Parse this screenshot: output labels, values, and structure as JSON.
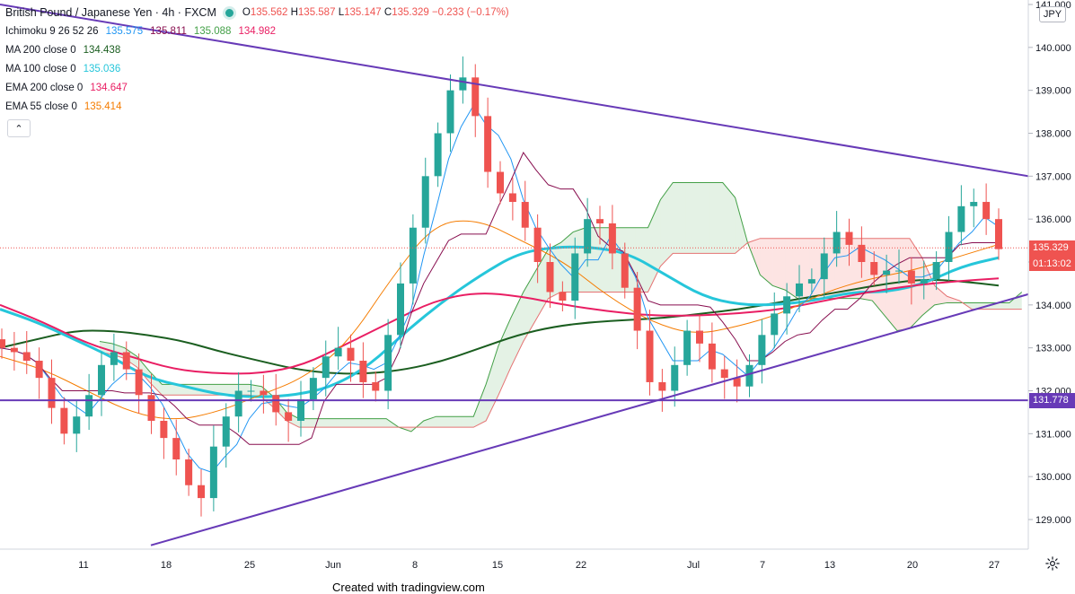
{
  "legend": {
    "symbol": "British Pound / Japanese Yen · 4h · FXCM",
    "ohlc": {
      "o_label": "O",
      "o": "135.562",
      "h_label": "H",
      "h": "135.587",
      "l_label": "L",
      "l": "135.147",
      "c_label": "C",
      "c": "135.329",
      "change": "−0.233 (−0.17%)"
    },
    "indicators": [
      {
        "name": "Ichimoku 9 26 52 26",
        "values": [
          "135.575",
          "135.811",
          "135.088",
          "134.982"
        ],
        "colors": [
          "#2196f3",
          "#880e4f",
          "#43a047",
          "#e91e63"
        ]
      },
      {
        "name": "MA 200 close 0",
        "values": [
          "134.438"
        ],
        "colors": [
          "#1b5e20"
        ]
      },
      {
        "name": "MA 100 close 0",
        "values": [
          "135.036"
        ],
        "colors": [
          "#26c6da"
        ]
      },
      {
        "name": "EMA 200 close 0",
        "values": [
          "134.647"
        ],
        "colors": [
          "#e91e63"
        ]
      },
      {
        "name": "EMA 55 close 0",
        "values": [
          "135.414"
        ],
        "colors": [
          "#f57c00"
        ]
      }
    ],
    "collapse_glyph": "⌃"
  },
  "price_axis": {
    "currency": "JPY",
    "ticks": [
      "141.000",
      "140.000",
      "139.000",
      "138.000",
      "137.000",
      "136.000",
      "135.000",
      "134.000",
      "133.000",
      "132.000",
      "131.000",
      "130.000",
      "129.000"
    ],
    "last_price": "135.329",
    "countdown": "01:13:02",
    "hline_price": "131.778"
  },
  "time_axis": {
    "labels": [
      "11",
      "18",
      "25",
      "Jun",
      "8",
      "15",
      "22",
      "Jul",
      "7",
      "13",
      "20",
      "27"
    ]
  },
  "footer": "Created with tradingview.com",
  "colors": {
    "up": "#26a69a",
    "down": "#ef5350",
    "trendline": "#673ab7",
    "last_price": "#ef5350",
    "hline": "#673ab7"
  },
  "chart_data": {
    "type": "line",
    "title": "British Pound / Japanese Yen · 4h · FXCM",
    "ylim": [
      128.4,
      141.0
    ],
    "x_label_dates": [
      "May 11",
      "May 18",
      "May 25",
      "Jun 1",
      "Jun 8",
      "Jun 15",
      "Jun 22",
      "Jul 1",
      "Jul 7",
      "Jul 13",
      "Jul 20",
      "Jul 27"
    ],
    "price_close": [
      133.0,
      132.9,
      132.7,
      132.3,
      131.6,
      131.0,
      131.4,
      131.9,
      132.6,
      132.9,
      132.5,
      131.9,
      131.3,
      130.9,
      130.4,
      129.8,
      129.5,
      130.7,
      131.4,
      132.0,
      132.0,
      131.9,
      131.5,
      131.3,
      131.8,
      132.3,
      132.8,
      133.0,
      132.7,
      132.2,
      132.0,
      133.3,
      134.5,
      135.8,
      137.0,
      138.0,
      139.0,
      139.3,
      138.4,
      137.1,
      136.6,
      136.4,
      135.8,
      135.0,
      134.3,
      134.1,
      135.2,
      136.0,
      135.9,
      135.2,
      134.4,
      133.4,
      132.2,
      132.0,
      132.6,
      133.4,
      133.1,
      132.5,
      132.3,
      132.1,
      132.6,
      133.3,
      133.8,
      134.2,
      134.5,
      134.6,
      135.2,
      135.7,
      135.4,
      135.0,
      134.7,
      134.8,
      134.8,
      134.5,
      134.6,
      135.0,
      135.7,
      136.3,
      136.4,
      136.0,
      135.3
    ],
    "series": [
      {
        "name": "MA 200 close 0",
        "color": "#1b5e20",
        "values": [
          133.0,
          133.2,
          133.4,
          133.4,
          133.3,
          133.15,
          132.9,
          132.7,
          132.5,
          132.4,
          132.4,
          132.5,
          132.7,
          133.0,
          133.3,
          133.5,
          133.6,
          133.65,
          133.7,
          133.8,
          133.9,
          134.05,
          134.2,
          134.35,
          134.5,
          134.6,
          134.55,
          134.45
        ]
      },
      {
        "name": "MA 100 close 0",
        "color": "#26c6da",
        "values": [
          133.9,
          133.6,
          133.2,
          132.8,
          132.3,
          132.1,
          131.9,
          131.85,
          131.9,
          132.1,
          132.6,
          133.4,
          134.1,
          134.7,
          135.2,
          135.35,
          135.35,
          135.2,
          134.7,
          134.2,
          134.0,
          134.0,
          134.1,
          134.3,
          134.3,
          134.5,
          134.9,
          135.1
        ]
      },
      {
        "name": "EMA 200 close 0",
        "color": "#e91e63",
        "values": [
          134.0,
          133.6,
          133.1,
          132.8,
          132.5,
          132.4,
          132.4,
          132.6,
          133.1,
          133.6,
          134.1,
          134.3,
          134.2,
          134.0,
          133.85,
          133.75,
          133.75,
          133.8,
          133.9,
          134.1,
          134.3,
          134.45,
          134.55,
          134.62
        ]
      },
      {
        "name": "EMA 55 close 0",
        "color": "#f57c00",
        "values": [
          132.8,
          132.5,
          132.0,
          131.5,
          131.3,
          131.5,
          131.9,
          132.3,
          133.1,
          134.6,
          135.9,
          136.0,
          135.5,
          135.0,
          134.2,
          133.6,
          133.3,
          133.5,
          133.8,
          134.3,
          134.6,
          134.8,
          135.1,
          135.41
        ]
      }
    ],
    "ichimoku_cloud": {
      "name": "Ichimoku 9 26 52 26"
    },
    "trendlines": [
      {
        "from_date": "May 4",
        "from_price": 141.0,
        "to_date": "Jul 28",
        "to_price": 137.0
      },
      {
        "from_date": "May 16",
        "from_price": 128.4,
        "to_date": "Jul 28",
        "to_price": 134.25
      }
    ],
    "horizontal_line": 131.778,
    "last_price": 135.329,
    "grid": false,
    "legend_position": "top-left"
  }
}
